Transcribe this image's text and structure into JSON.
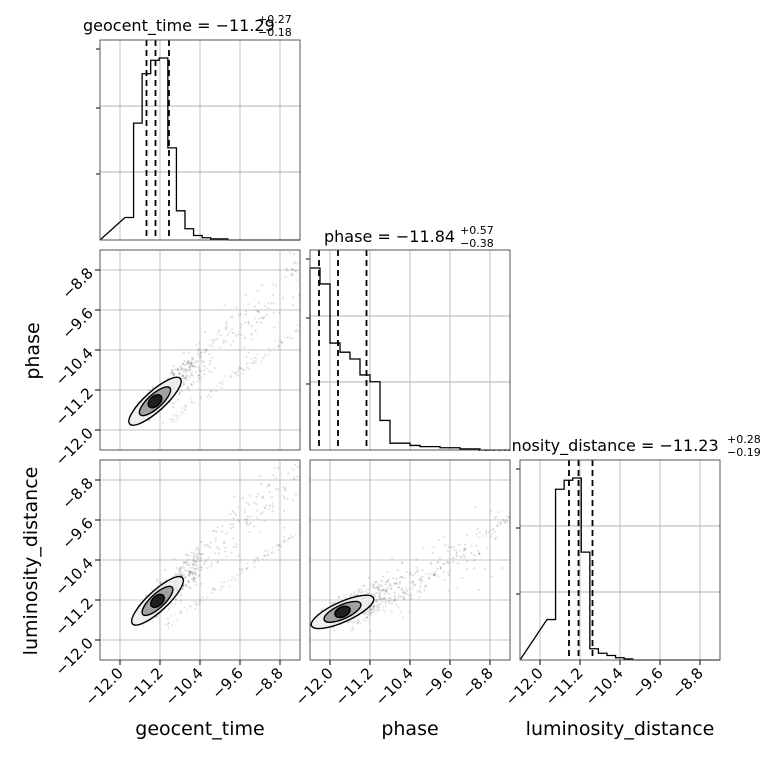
{
  "chart_data": {
    "type": "corner",
    "parameters": [
      "geocent_time",
      "phase",
      "luminosity_distance"
    ],
    "axis_range": [
      -12.4,
      -8.4
    ],
    "ticks": [
      -12.0,
      -11.2,
      -10.4,
      -9.6,
      -8.8
    ],
    "tick_labels": [
      "−12.0",
      "−11.2",
      "−10.4",
      "−9.6",
      "−8.8"
    ],
    "grid": true,
    "titles": [
      {
        "main": "geocent_time = −11.29",
        "sup": "+0.27",
        "sub": "−0.18"
      },
      {
        "main": "phase = −11.84",
        "sup": "+0.57",
        "sub": "−0.38"
      },
      {
        "main": "luminosity_distance = −11.23",
        "sup": "+0.28",
        "sub": "−0.19"
      }
    ],
    "histograms": [
      {
        "param": "geocent_time",
        "bin_start": -11.9,
        "bin_width": 0.1714,
        "counts": [
          0.1,
          0.52,
          0.74,
          0.8,
          0.81,
          0.41,
          0.13,
          0.05,
          0.02,
          0.01,
          0.005,
          0.005,
          0.0,
          0.0,
          0.0,
          0.0,
          0.0,
          0.0,
          0.0,
          0.0
        ],
        "quantiles": [
          -11.47,
          -11.29,
          -11.02
        ]
      },
      {
        "param": "phase",
        "bin_start": -12.4,
        "bin_width": 0.2,
        "counts": [
          0.8,
          0.73,
          0.47,
          0.43,
          0.4,
          0.33,
          0.3,
          0.13,
          0.03,
          0.03,
          0.02,
          0.015,
          0.015,
          0.01,
          0.01,
          0.005,
          0.005,
          0.0,
          0.0,
          0.0
        ],
        "quantiles": [
          -12.22,
          -11.84,
          -11.27
        ]
      },
      {
        "param": "luminosity_distance",
        "bin_start": -11.86,
        "bin_width": 0.1714,
        "counts": [
          0.18,
          0.76,
          0.8,
          0.81,
          0.48,
          0.05,
          0.03,
          0.02,
          0.01,
          0.005,
          0.0,
          0.0,
          0.0,
          0.0,
          0.0,
          0.0,
          0.0,
          0.0,
          0.0,
          0.0
        ],
        "quantiles": [
          -11.42,
          -11.23,
          -10.95
        ]
      }
    ],
    "scatter_panels": [
      {
        "x": "geocent_time",
        "y": "phase"
      },
      {
        "x": "geocent_time",
        "y": "luminosity_distance"
      },
      {
        "x": "phase",
        "y": "luminosity_distance"
      }
    ]
  }
}
